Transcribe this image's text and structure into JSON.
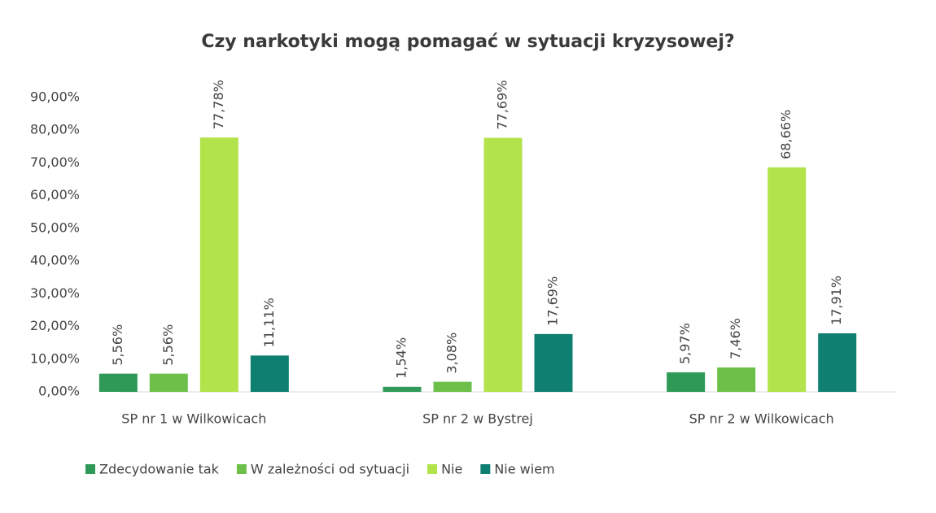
{
  "chart_data": {
    "type": "bar",
    "title": "Czy narkotyki mogą pomagać w sytuacji kryzysowej?",
    "categories": [
      "SP nr 1 w Wilkowicach",
      "SP nr 2 w Bystrej",
      "SP nr 2 w Wilkowicach"
    ],
    "series": [
      {
        "name": "Zdecydowanie tak",
        "color": "#2f9a57",
        "values": [
          5.56,
          1.54,
          5.97
        ],
        "value_labels": [
          "5,56%",
          "1,54%",
          "5,97%"
        ]
      },
      {
        "name": "W zależności od sytuacji",
        "color": "#6cc04a",
        "values": [
          5.56,
          3.08,
          7.46
        ],
        "value_labels": [
          "5,56%",
          "3,08%",
          "7,46%"
        ]
      },
      {
        "name": "Nie",
        "color": "#b3e34b",
        "values": [
          77.78,
          77.69,
          68.66
        ],
        "value_labels": [
          "77,78%",
          "77,69%",
          "68,66%"
        ]
      },
      {
        "name": "Nie wiem",
        "color": "#0f7f72",
        "values": [
          11.11,
          17.69,
          17.91
        ],
        "value_labels": [
          "11,11%",
          "17,69%",
          "17,91%"
        ]
      }
    ],
    "ylim": [
      0,
      90
    ],
    "yticks": [
      {
        "value": 0,
        "label": "0,00%"
      },
      {
        "value": 10,
        "label": "10,00%"
      },
      {
        "value": 20,
        "label": "20,00%"
      },
      {
        "value": 30,
        "label": "30,00%"
      },
      {
        "value": 40,
        "label": "40,00%"
      },
      {
        "value": 50,
        "label": "50,00%"
      },
      {
        "value": 60,
        "label": "60,00%"
      },
      {
        "value": 70,
        "label": "70,00%"
      },
      {
        "value": 80,
        "label": "80,00%"
      },
      {
        "value": 90,
        "label": "90,00%"
      }
    ],
    "grid": false,
    "legend": "bottom"
  }
}
